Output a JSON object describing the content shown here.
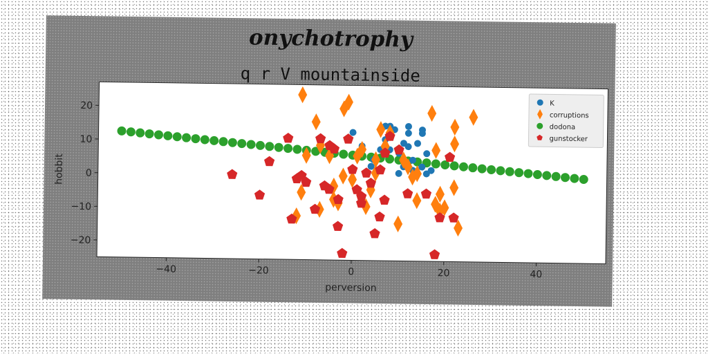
{
  "figure": {
    "suptitle": "onychotrophy",
    "title": "q r V mountainside"
  },
  "chart_data": {
    "type": "scatter",
    "title": "q r V mountainside",
    "suptitle": "onychotrophy",
    "xlabel": "perversion",
    "ylabel": "hobbit",
    "xlim": [
      -55,
      55
    ],
    "ylim": [
      -25,
      27
    ],
    "xticks": [
      -40,
      -20,
      0,
      20,
      40
    ],
    "yticks": [
      -20,
      -10,
      0,
      10,
      20
    ],
    "grid": false,
    "legend_position": "top-right",
    "series": [
      {
        "name": "K",
        "color": "#1f77b4",
        "marker": "circle",
        "x": [
          0,
          2,
          4,
          4.5,
          6,
          7,
          7,
          8,
          8,
          9,
          10,
          10,
          11,
          11,
          12,
          12,
          12,
          13,
          13,
          14,
          14,
          15,
          15,
          15,
          16,
          16,
          17
        ],
        "y": [
          13,
          9,
          3,
          5,
          8,
          15,
          11,
          15,
          8,
          14,
          7,
          1,
          3,
          10,
          15,
          13,
          9,
          2,
          5,
          10,
          1,
          14,
          3,
          13,
          7,
          1,
          2
        ]
      },
      {
        "name": "corruptions",
        "color": "#ff7f0e",
        "marker": "diamond",
        "x": [
          -12,
          -11,
          -11,
          -10,
          -8,
          -7,
          -7,
          -5,
          -4,
          -4,
          -3,
          -2,
          -2,
          -1,
          0,
          1,
          2,
          3,
          4,
          5,
          5,
          6,
          7,
          8,
          10,
          11,
          12,
          13,
          14,
          14,
          17,
          18,
          18,
          19,
          19,
          20,
          22,
          22,
          22,
          23,
          26
        ],
        "y": [
          -12,
          -5,
          24,
          6,
          16,
          9,
          -10,
          6,
          -7,
          -3,
          -8,
          0,
          20,
          22,
          -1,
          6,
          8,
          -9,
          -4,
          5,
          1,
          14,
          9,
          13,
          -14,
          5,
          3,
          0,
          1,
          -7,
          19,
          -8,
          8,
          -10,
          -5,
          -9,
          10,
          15,
          -3,
          -15,
          18
        ]
      },
      {
        "name": "dodona",
        "color": "#2ca02c",
        "marker": "circle",
        "x": [
          -50,
          -48,
          -46,
          -44,
          -42,
          -40,
          -38,
          -36,
          -34,
          -32,
          -30,
          -28,
          -26,
          -24,
          -22,
          -20,
          -18,
          -16,
          -14,
          -12,
          -10,
          -8,
          -6,
          -4,
          -2,
          0,
          2,
          4,
          6,
          8,
          10,
          12,
          14,
          16,
          18,
          20,
          22,
          24,
          26,
          28,
          30,
          32,
          34,
          36,
          38,
          40,
          42,
          44,
          46,
          48,
          50
        ],
        "y": [
          12.5,
          12.25,
          12,
          11.75,
          11.5,
          11.25,
          11,
          10.75,
          10.5,
          10.25,
          10,
          9.75,
          9.5,
          9.25,
          9,
          8.75,
          8.5,
          8.25,
          8,
          7.75,
          7.5,
          7.25,
          7,
          6.75,
          6.5,
          6.25,
          6,
          5.75,
          5.5,
          5.25,
          5,
          4.75,
          4.5,
          4.25,
          4,
          3.75,
          3.5,
          3.25,
          3,
          2.75,
          2.5,
          2.25,
          2,
          1.75,
          1.5,
          1.25,
          1,
          0.75,
          0.5,
          0.25,
          0
        ]
      },
      {
        "name": "gunstocker",
        "color": "#d62728",
        "marker": "pentagon",
        "x": [
          -26,
          -20,
          -18,
          -14,
          -13,
          -12,
          -11,
          -10,
          -8,
          -7,
          -6,
          -5,
          -5,
          -4,
          -3,
          -3,
          -2,
          -1,
          0,
          1,
          2,
          2,
          3,
          4,
          5,
          6,
          6,
          7,
          7,
          8,
          10,
          12,
          16,
          18,
          19,
          21,
          22
        ],
        "y": [
          0,
          -6,
          4,
          11,
          -13,
          -1,
          0,
          -2,
          -10,
          11,
          -3,
          -4,
          9,
          8,
          -15,
          -7,
          -23,
          11,
          2,
          -4,
          -6,
          -8,
          1,
          -2,
          -17,
          -12,
          2,
          7,
          -7,
          12,
          8,
          -5,
          -5,
          -23,
          -12,
          6,
          -12
        ]
      }
    ]
  }
}
